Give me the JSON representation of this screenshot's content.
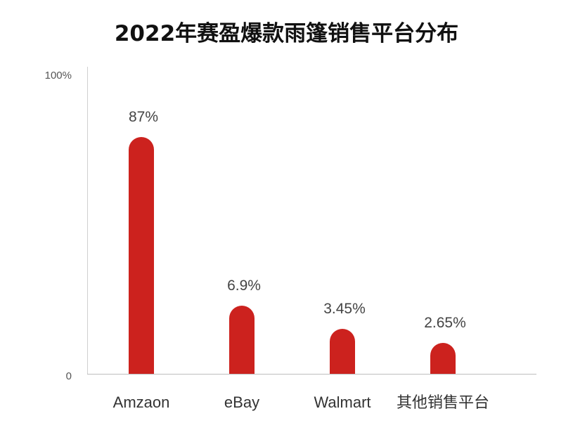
{
  "chart_data": {
    "type": "bar",
    "title": "2022年赛盈爆款雨篷销售平台分布",
    "categories": [
      "Amzaon",
      "eBay",
      "Walmart",
      "其他销售平台"
    ],
    "values": [
      87,
      6.9,
      3.45,
      2.65
    ],
    "data_labels": [
      "87%",
      "6.9%",
      "3.45%",
      "2.65%"
    ],
    "ytick_labels": [
      "0",
      "100%"
    ],
    "ylim": [
      0,
      100
    ],
    "grid": false,
    "legend": "none",
    "bar_color": "#cc221e",
    "xlabel": "",
    "ylabel": ""
  }
}
